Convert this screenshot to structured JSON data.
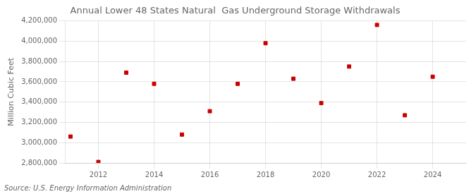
{
  "chart_data": {
    "type": "scatter",
    "title": "Annual Lower 48 States Natural  Gas Underground Storage Withdrawals",
    "ylabel": "Million Cubic Feet",
    "annotations": [
      "Source: U.S. Energy Information Administration"
    ],
    "x": [
      2011,
      2012,
      2013,
      2014,
      2015,
      2016,
      2017,
      2018,
      2019,
      2020,
      2021,
      2022,
      2023,
      2024
    ],
    "values": [
      3060000,
      2810000,
      3690000,
      3580000,
      3080000,
      3310000,
      3580000,
      3980000,
      3630000,
      3390000,
      3750000,
      4160000,
      3270000,
      3650000
    ],
    "color": "#cc0000",
    "marker": "square",
    "xlim": [
      2010.8,
      2025.2
    ],
    "xticks": [
      2012,
      2014,
      2016,
      2018,
      2020,
      2022,
      2024
    ],
    "ylim": [
      2800000,
      4200000
    ],
    "yticks": [
      {
        "value": 2800000,
        "label": "2,800,000"
      },
      {
        "value": 3000000,
        "label": "3,000,000"
      },
      {
        "value": 3200000,
        "label": "3,200,000"
      },
      {
        "value": 3400000,
        "label": "3,400,000"
      },
      {
        "value": 3600000,
        "label": "3,600,000"
      },
      {
        "value": 3800000,
        "label": "3,800,000"
      },
      {
        "value": 4000000,
        "label": "4,000,000"
      },
      {
        "value": 4200000,
        "label": "4,200,000"
      }
    ],
    "grid": true
  }
}
